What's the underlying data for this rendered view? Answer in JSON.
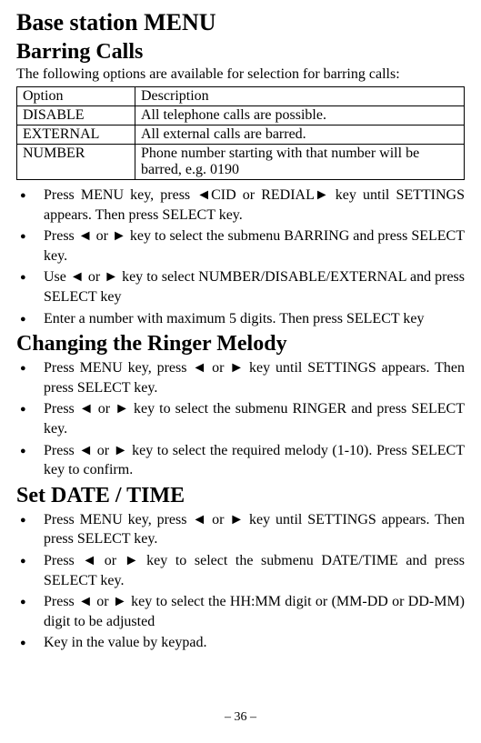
{
  "mainHeading": "Base station MENU",
  "barring": {
    "heading": "Barring Calls",
    "intro": "The following options are available for selection for barring calls:",
    "table": {
      "header": {
        "col1": "Option",
        "col2": "Description"
      },
      "rows": [
        {
          "col1": "DISABLE",
          "col2": "All telephone calls are possible."
        },
        {
          "col1": "EXTERNAL",
          "col2": "All external calls are barred."
        },
        {
          "col1": "NUMBER",
          "col2": "Phone number starting with that number will be barred, e.g. 0190"
        }
      ]
    },
    "bullets": [
      "Press MENU key, press ◄CID or REDIAL► key until SETTINGS appears. Then press SELECT key.",
      "Press ◄ or ► key to select the submenu BARRING and press SELECT key.",
      "Use ◄ or ► key to select NUMBER/DISABLE/EXTERNAL and press SELECT key",
      "Enter a number with maximum 5 digits. Then press SELECT key"
    ]
  },
  "ringer": {
    "heading": "Changing the Ringer Melody",
    "bullets": [
      "Press MENU key, press ◄ or ► key until SETTINGS appears. Then press SELECT key.",
      "Press ◄ or ► key to select the submenu RINGER and press SELECT key.",
      "Press ◄ or ► key to select the required melody (1-10). Press SELECT key to confirm."
    ]
  },
  "datetime": {
    "heading": "Set DATE / TIME",
    "bullets": [
      "Press MENU key, press ◄ or ► key until SETTINGS appears. Then press SELECT key.",
      "Press ◄ or ► key to select the submenu DATE/TIME and press SELECT key.",
      "Press ◄ or ► key to select the HH:MM digit or (MM-DD or DD-MM) digit to be adjusted",
      "Key in the value by keypad."
    ]
  },
  "pageNumber": "– 36 –"
}
